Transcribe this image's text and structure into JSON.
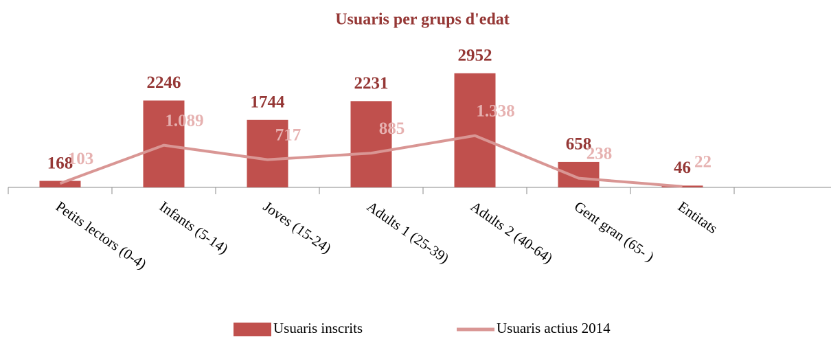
{
  "chart_data": {
    "type": "bar",
    "title": "Usuaris per grups d'edat",
    "categories": [
      "Petits lectors (0-4)",
      "Infants (5-14)",
      "Joves (15-24)",
      "Adults 1 (25-39)",
      "Adults 2 (40-64)",
      "Gent gran (65- )",
      "Entitats",
      null
    ],
    "series": [
      {
        "name": "Usuaris inscrits",
        "type": "bar",
        "color": "#c0504d",
        "label_color": "#953735",
        "values": [
          168,
          2246,
          1744,
          2231,
          2952,
          658,
          46,
          null
        ]
      },
      {
        "name": "Usuaris actius 2014",
        "type": "line",
        "color": "#d99694",
        "label_color": "#e6b1b0",
        "values": [
          103,
          1089,
          717,
          885,
          1338,
          238,
          22,
          null
        ],
        "value_labels": [
          "103",
          "1.089",
          "717",
          "885",
          "1.338",
          "238",
          "22",
          null
        ]
      }
    ],
    "ylim": [
      0,
      3000
    ],
    "legend": "bottom"
  }
}
